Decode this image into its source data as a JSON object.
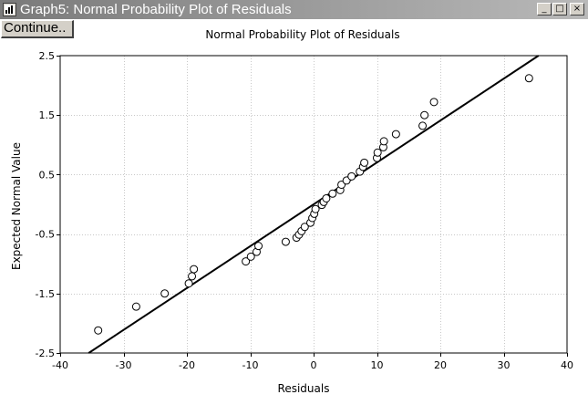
{
  "window": {
    "title": "Graph5: Normal Probability Plot of Residuals",
    "continue_label": "Continue..",
    "controls": {
      "minimize": "_",
      "maximize": "□",
      "close": "×"
    }
  },
  "colors": {
    "titlebar_start": "#7a7a7a",
    "titlebar_end": "#b9b9b9",
    "grid": "#c8c8c8"
  },
  "chart_data": {
    "type": "scatter",
    "title": "Normal Probability Plot of Residuals",
    "xlabel": "Residuals",
    "ylabel": "Expected Normal Value",
    "xlim": [
      -40,
      40
    ],
    "ylim": [
      -2.5,
      2.5
    ],
    "xticks": [
      -40,
      -30,
      -20,
      -10,
      0,
      10,
      20,
      30,
      40
    ],
    "xtick_labels": [
      "-40",
      "-30",
      "-20",
      "-10",
      "0",
      "10",
      "20",
      "30",
      "40"
    ],
    "yticks": [
      -2.5,
      -1.5,
      -0.5,
      0.5,
      1.5,
      2.5
    ],
    "ytick_labels": [
      "-2.5",
      "-1.5",
      "-0.5",
      "0.5",
      "1.5",
      "2.5"
    ],
    "grid": true,
    "reference_line": {
      "x": [
        -35.5,
        35.5
      ],
      "y": [
        -2.5,
        2.5
      ]
    },
    "points": [
      {
        "x": -34.0,
        "y": -2.12
      },
      {
        "x": -28.0,
        "y": -1.72
      },
      {
        "x": -23.5,
        "y": -1.5
      },
      {
        "x": -19.7,
        "y": -1.33
      },
      {
        "x": -19.2,
        "y": -1.21
      },
      {
        "x": -18.9,
        "y": -1.09
      },
      {
        "x": -10.7,
        "y": -0.96
      },
      {
        "x": -9.9,
        "y": -0.88
      },
      {
        "x": -9.0,
        "y": -0.8
      },
      {
        "x": -8.7,
        "y": -0.7
      },
      {
        "x": -4.4,
        "y": -0.63
      },
      {
        "x": -2.7,
        "y": -0.56
      },
      {
        "x": -2.3,
        "y": -0.51
      },
      {
        "x": -1.9,
        "y": -0.45
      },
      {
        "x": -1.4,
        "y": -0.38
      },
      {
        "x": -0.5,
        "y": -0.31
      },
      {
        "x": -0.2,
        "y": -0.23
      },
      {
        "x": 0.1,
        "y": -0.16
      },
      {
        "x": 0.3,
        "y": -0.08
      },
      {
        "x": 1.3,
        "y": -0.01
      },
      {
        "x": 1.6,
        "y": 0.04
      },
      {
        "x": 2.0,
        "y": 0.1
      },
      {
        "x": 3.0,
        "y": 0.18
      },
      {
        "x": 4.2,
        "y": 0.24
      },
      {
        "x": 4.4,
        "y": 0.33
      },
      {
        "x": 5.2,
        "y": 0.4
      },
      {
        "x": 6.0,
        "y": 0.47
      },
      {
        "x": 7.3,
        "y": 0.55
      },
      {
        "x": 7.8,
        "y": 0.63
      },
      {
        "x": 8.0,
        "y": 0.7
      },
      {
        "x": 10.0,
        "y": 0.78
      },
      {
        "x": 10.1,
        "y": 0.87
      },
      {
        "x": 11.0,
        "y": 0.96
      },
      {
        "x": 11.1,
        "y": 1.06
      },
      {
        "x": 13.0,
        "y": 1.18
      },
      {
        "x": 17.2,
        "y": 1.32
      },
      {
        "x": 17.5,
        "y": 1.5
      },
      {
        "x": 19.0,
        "y": 1.72
      },
      {
        "x": 34.0,
        "y": 2.12
      }
    ]
  }
}
